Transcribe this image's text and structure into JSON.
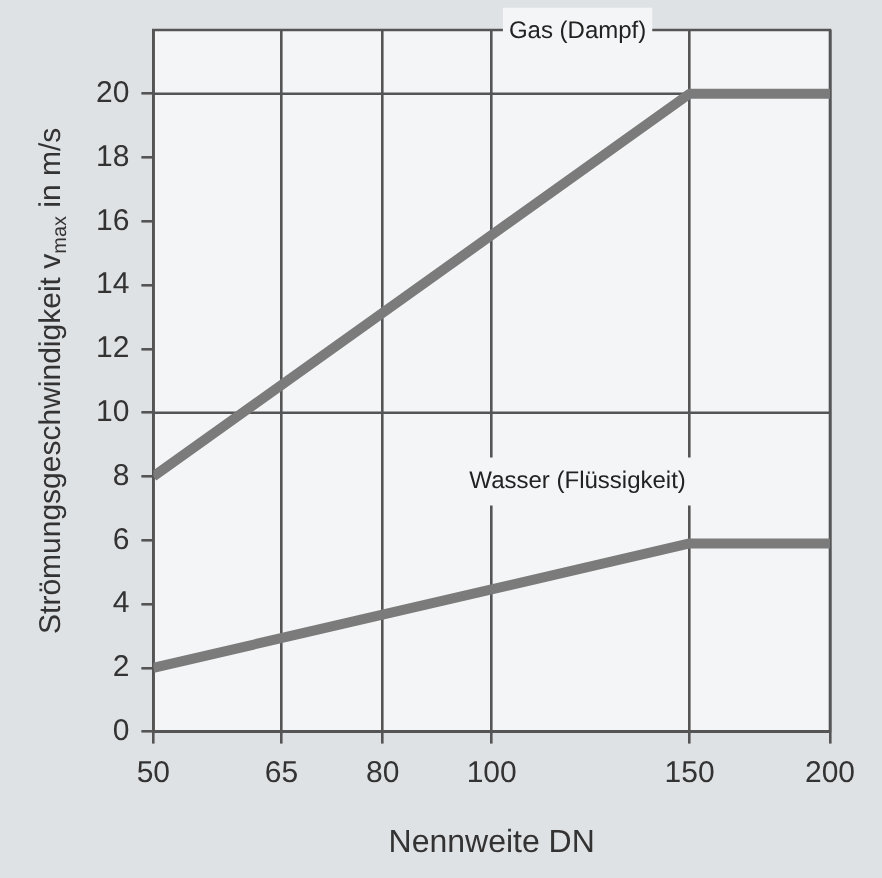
{
  "chart_data": {
    "type": "line",
    "xlabel": "Nennweite DN",
    "ylabel": "Strömungsgeschwindigkeit v$_{max}$ in m/s",
    "log": "x",
    "xlim": [
      50,
      200
    ],
    "xticks": [
      50,
      65,
      80,
      100,
      150,
      200
    ],
    "ylim": [
      0,
      22
    ],
    "yticks": [
      0,
      2,
      4,
      6,
      8,
      10,
      12,
      14,
      16,
      18,
      20
    ],
    "grid": "x",
    "legend": false,
    "marker": "none",
    "line_style": "solid",
    "series": [
      {
        "x": [
          50,
          150,
          200
        ],
        "values": [
          8,
          20,
          20
        ],
        "color": "#7b7b7b"
      },
      {
        "x": [
          50,
          150,
          200
        ],
        "values": [
          2,
          5.9,
          5.9
        ],
        "color": "#7b7b7b"
      }
    ],
    "ref_lines": [
      {
        "axis": "y",
        "value": 10,
        "color": "#555555"
      },
      {
        "axis": "y",
        "value": 20,
        "color": "#555555"
      }
    ],
    "annotations": [
      "Gas (Dampf)",
      "Wasser (Flüssigkeit)"
    ]
  }
}
